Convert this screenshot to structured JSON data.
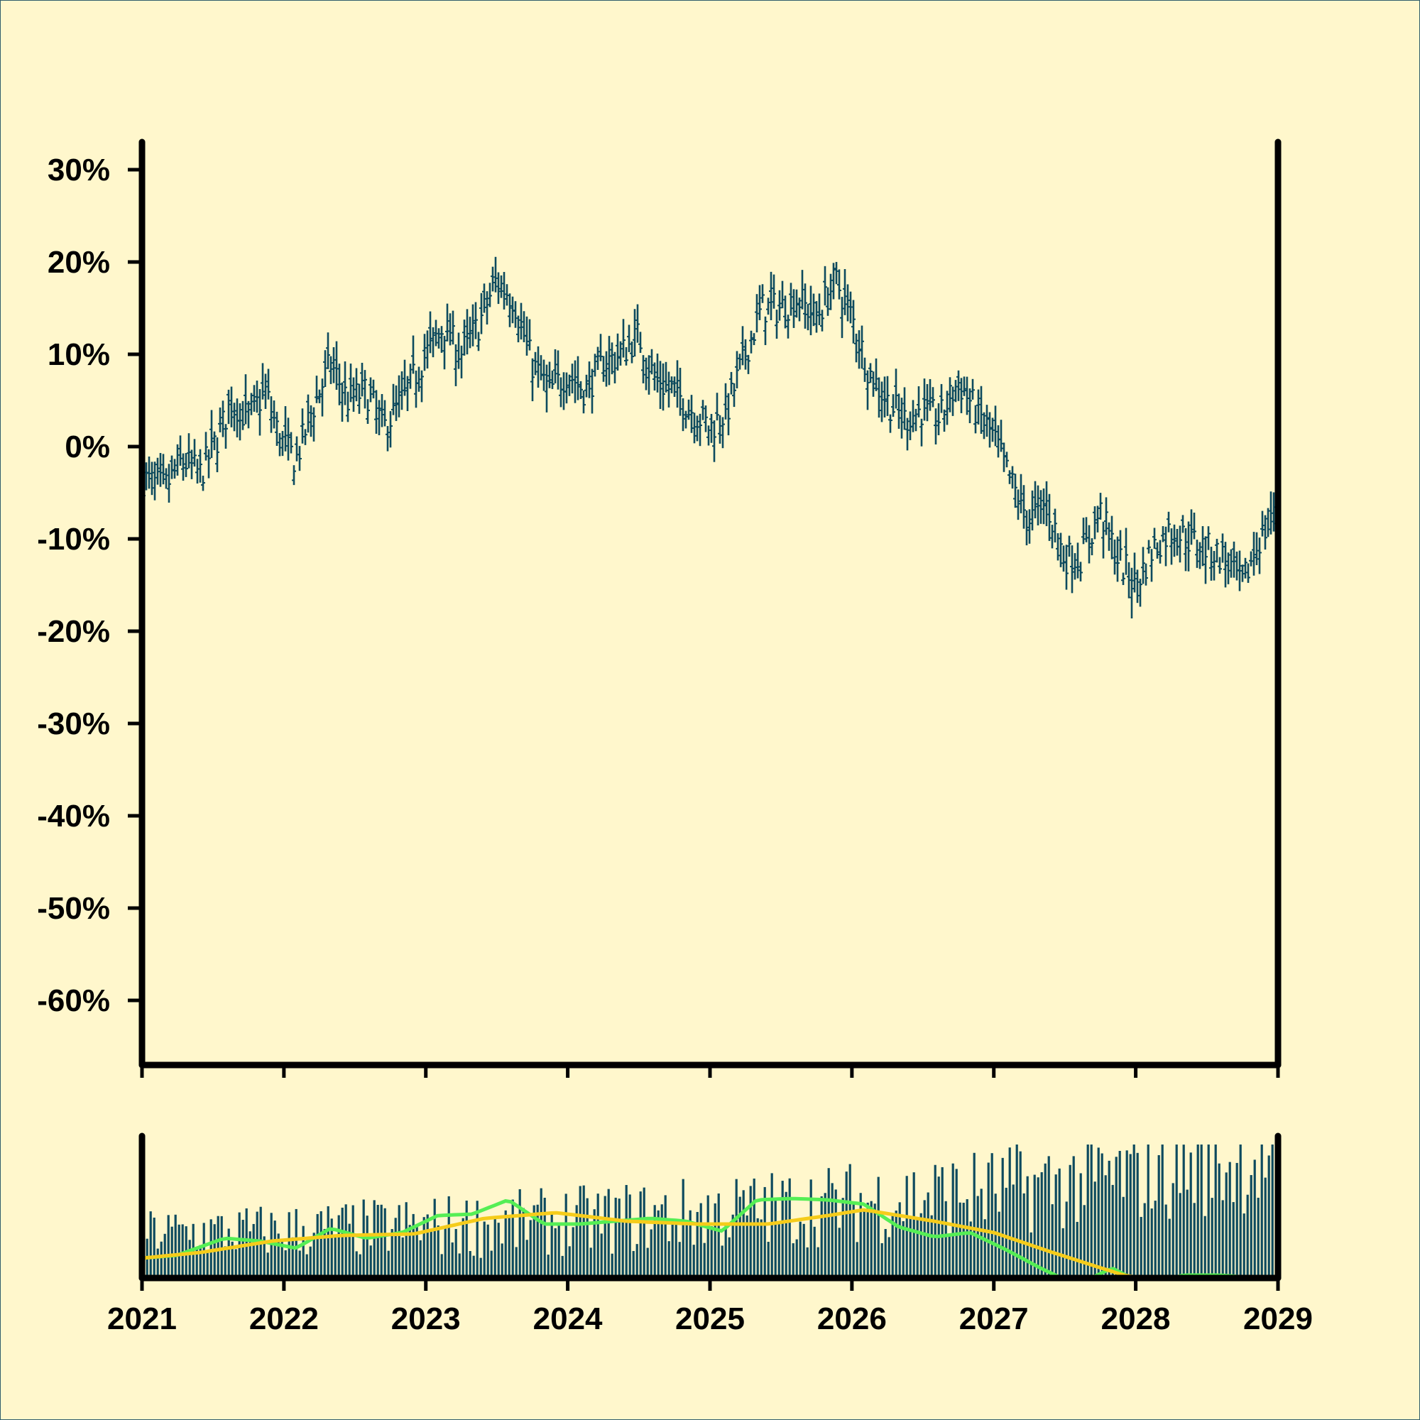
{
  "chart_data": [
    {
      "type": "ohlc",
      "y_unit": "percent",
      "ylim": [
        -67,
        33
      ],
      "ytick_labels": [
        "30%",
        "20%",
        "10%",
        "0%",
        "-10%",
        "-20%",
        "-30%",
        "-40%",
        "-50%",
        "-60%"
      ],
      "ytick_values": [
        30,
        20,
        10,
        0,
        -10,
        -20,
        -30,
        -40,
        -50,
        -60
      ],
      "xlim": [
        "2021-01-01",
        "2029-01-01"
      ],
      "bar_color": "#0d4a5e",
      "close_path": [
        [
          "2021-01-01",
          -3.5
        ],
        [
          "2021-03-01",
          -4.5
        ],
        [
          "2021-04-15",
          -1.5
        ],
        [
          "2021-06-01",
          -3
        ],
        [
          "2021-07-15",
          1
        ],
        [
          "2021-08-20",
          5
        ],
        [
          "2021-10-01",
          3
        ],
        [
          "2021-11-15",
          6
        ],
        [
          "2021-12-20",
          1
        ],
        [
          "2022-02-01",
          -1.5
        ],
        [
          "2022-03-15",
          4
        ],
        [
          "2022-05-01",
          9
        ],
        [
          "2022-06-15",
          5
        ],
        [
          "2022-08-01",
          6
        ],
        [
          "2022-09-15",
          2
        ],
        [
          "2022-11-01",
          5
        ],
        [
          "2023-01-01",
          10
        ],
        [
          "2023-02-15",
          13
        ],
        [
          "2023-04-01",
          10
        ],
        [
          "2023-05-15",
          13
        ],
        [
          "2023-07-01",
          18
        ],
        [
          "2023-08-15",
          16
        ],
        [
          "2023-10-01",
          9
        ],
        [
          "2023-11-15",
          6
        ],
        [
          "2024-01-01",
          8
        ],
        [
          "2024-02-15",
          6
        ],
        [
          "2024-04-01",
          9
        ],
        [
          "2024-05-15",
          10
        ],
        [
          "2024-07-01",
          12
        ],
        [
          "2024-08-15",
          7
        ],
        [
          "2024-10-01",
          6
        ],
        [
          "2024-11-15",
          4
        ],
        [
          "2025-01-01",
          2
        ],
        [
          "2025-02-15",
          4
        ],
        [
          "2025-04-01",
          10
        ],
        [
          "2025-05-15",
          15
        ],
        [
          "2025-07-01",
          15
        ],
        [
          "2025-08-15",
          16
        ],
        [
          "2025-10-01",
          14
        ],
        [
          "2025-11-20",
          18
        ],
        [
          "2026-01-01",
          14
        ],
        [
          "2026-02-15",
          8
        ],
        [
          "2026-04-01",
          5
        ],
        [
          "2026-05-15",
          3
        ],
        [
          "2026-07-01",
          4
        ],
        [
          "2026-08-15",
          3
        ],
        [
          "2026-10-01",
          7
        ],
        [
          "2026-11-15",
          4
        ],
        [
          "2027-01-01",
          1
        ],
        [
          "2027-02-15",
          -4
        ],
        [
          "2027-04-01",
          -8
        ],
        [
          "2027-05-15",
          -6
        ],
        [
          "2027-07-01",
          -12
        ],
        [
          "2027-08-15",
          -12
        ],
        [
          "2027-10-01",
          -7
        ],
        [
          "2027-11-15",
          -12
        ],
        [
          "2028-01-01",
          -15
        ],
        [
          "2028-02-15",
          -11
        ],
        [
          "2028-04-01",
          -9
        ],
        [
          "2028-05-15",
          -10
        ],
        [
          "2028-07-01",
          -11
        ],
        [
          "2028-08-15",
          -12
        ],
        [
          "2028-10-01",
          -15
        ],
        [
          "2028-11-15",
          -10
        ],
        [
          "2028-12-31",
          -7
        ]
      ],
      "bar_count": 400
    },
    {
      "type": "bar+line",
      "role": "volume panel",
      "x_tick_labels": [
        "2021",
        "2022",
        "2023",
        "2024",
        "2025",
        "2026",
        "2027",
        "2028",
        "2029"
      ],
      "bar_color": "#0d4a5e",
      "series": [
        {
          "color": "#55ee55",
          "values": [
            [
              "2021-01-01",
              14
            ],
            [
              "2021-04-01",
              16
            ],
            [
              "2021-08-01",
              28
            ],
            [
              "2021-11-01",
              26
            ],
            [
              "2022-02-01",
              21
            ],
            [
              "2022-05-01",
              35
            ],
            [
              "2022-08-01",
              28
            ],
            [
              "2022-11-01",
              32
            ],
            [
              "2023-02-01",
              44
            ],
            [
              "2023-05-01",
              45
            ],
            [
              "2023-08-01",
              55
            ],
            [
              "2023-11-01",
              38
            ],
            [
              "2024-02-01",
              38
            ],
            [
              "2024-05-01",
              40
            ],
            [
              "2024-08-01",
              42
            ],
            [
              "2024-11-01",
              40
            ],
            [
              "2025-02-01",
              33
            ],
            [
              "2025-05-01",
              55
            ],
            [
              "2025-08-01",
              56
            ],
            [
              "2025-11-01",
              55
            ],
            [
              "2026-02-01",
              52
            ],
            [
              "2026-05-01",
              36
            ],
            [
              "2026-08-01",
              29
            ],
            [
              "2026-11-01",
              32
            ],
            [
              "2027-02-01",
              20
            ],
            [
              "2027-05-01",
              7
            ],
            [
              "2027-08-01",
              -5
            ],
            [
              "2027-11-01",
              7
            ],
            [
              "2028-02-01",
              -6
            ],
            [
              "2028-05-01",
              2
            ],
            [
              "2028-08-01",
              2
            ],
            [
              "2028-12-31",
              -1
            ]
          ]
        },
        {
          "color": "#f5cc1a",
          "values": [
            [
              "2021-01-01",
              14
            ],
            [
              "2021-06-01",
              18
            ],
            [
              "2021-12-01",
              26
            ],
            [
              "2022-06-01",
              30
            ],
            [
              "2022-12-01",
              31
            ],
            [
              "2023-06-01",
              42
            ],
            [
              "2023-12-01",
              46
            ],
            [
              "2024-06-01",
              40
            ],
            [
              "2024-12-01",
              38
            ],
            [
              "2025-06-01",
              38
            ],
            [
              "2025-11-01",
              44
            ],
            [
              "2026-02-01",
              48
            ],
            [
              "2026-08-01",
              40
            ],
            [
              "2027-01-01",
              32
            ],
            [
              "2027-06-01",
              18
            ],
            [
              "2027-12-01",
              2
            ],
            [
              "2028-06-01",
              -6
            ],
            [
              "2028-12-31",
              -9
            ]
          ]
        }
      ],
      "bar_range": [
        4,
        94
      ]
    }
  ]
}
